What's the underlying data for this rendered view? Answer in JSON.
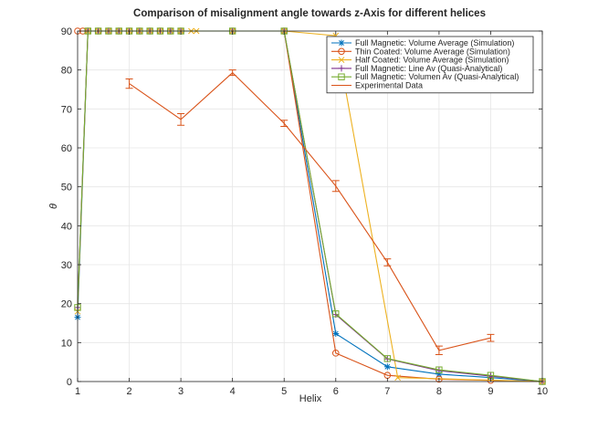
{
  "chart_data": {
    "type": "line",
    "title": "Comparison of misalignment angle towards z-Axis for different helices",
    "xlabel": "Helix",
    "ylabel": "θ",
    "xlim": [
      1,
      10
    ],
    "ylim": [
      0,
      90
    ],
    "xticks": [
      "1",
      "2",
      "3",
      "4",
      "5",
      "6",
      "7",
      "8",
      "9",
      "10"
    ],
    "yticks": [
      "0",
      "10",
      "20",
      "30",
      "40",
      "50",
      "60",
      "70",
      "80",
      "90"
    ],
    "grid": true,
    "legend_position": "top-right",
    "series": [
      {
        "name": "Full Magnetic: Volume Average (Simulation)",
        "color": "#0072bd",
        "marker": "asterisk",
        "x": [
          1,
          1.2,
          1.4,
          1.6,
          1.8,
          2,
          2.2,
          2.4,
          2.6,
          2.8,
          3,
          4,
          5,
          6,
          7,
          8,
          9,
          10
        ],
        "y": [
          16.5,
          90,
          90,
          90,
          90,
          90,
          90,
          90,
          90,
          90,
          90,
          90,
          90,
          12.3,
          3.8,
          1.9,
          1.0,
          0
        ]
      },
      {
        "name": "Thin Coated: Volume Average (Simulation)",
        "color": "#d95319",
        "marker": "circle",
        "x": [
          1,
          1.1,
          1.2,
          1.4,
          1.6,
          1.8,
          2,
          2.2,
          2.4,
          2.6,
          2.8,
          3,
          4,
          5,
          6,
          7,
          8,
          9,
          10
        ],
        "y": [
          90,
          90,
          90,
          90,
          90,
          90,
          90,
          90,
          90,
          90,
          90,
          90,
          90,
          90,
          7.3,
          1.6,
          0.6,
          0.3,
          0
        ]
      },
      {
        "name": "Half Coated: Volume Average (Simulation)",
        "color": "#edb120",
        "marker": "cross",
        "x": [
          1,
          1.2,
          1.4,
          1.6,
          1.8,
          2,
          2.2,
          2.4,
          2.6,
          2.8,
          3,
          3.2,
          3.3,
          4,
          5,
          6,
          7.2,
          10
        ],
        "y": [
          18,
          90,
          90,
          90,
          90,
          90,
          90,
          90,
          90,
          90,
          90,
          90,
          90,
          90,
          90,
          88.8,
          1.0,
          0
        ]
      },
      {
        "name": "Full Magnetic: Line Av (Quasi-Analytical)",
        "color": "#7e2f8e",
        "marker": "plus",
        "x": [
          1,
          1.2,
          1.4,
          1.6,
          1.8,
          2,
          2.2,
          2.4,
          2.6,
          2.8,
          3,
          4,
          5,
          6,
          7,
          8,
          9,
          10
        ],
        "y": [
          19,
          90,
          90,
          90,
          90,
          90,
          90,
          90,
          90,
          90,
          90,
          90,
          90,
          17.2,
          5.8,
          2.8,
          1.4,
          0
        ]
      },
      {
        "name": "Full Magnetic: Volumen Av (Quasi-Analytical)",
        "color": "#77ac30",
        "marker": "square",
        "x": [
          1,
          1.2,
          1.4,
          1.6,
          1.8,
          2,
          2.2,
          2.4,
          2.6,
          2.8,
          3,
          4,
          5,
          6,
          7,
          8,
          9,
          10
        ],
        "y": [
          19,
          90,
          90,
          90,
          90,
          90,
          90,
          90,
          90,
          90,
          90,
          90,
          90,
          17.4,
          5.9,
          3.0,
          1.6,
          0
        ]
      },
      {
        "name": "Experimental Data",
        "color": "#d95319",
        "marker": "errorbar",
        "x": [
          2,
          3,
          4,
          5,
          6,
          7,
          8,
          9
        ],
        "y": [
          76.5,
          67.3,
          79.3,
          66.3,
          50.2,
          30.6,
          8.0,
          11.2
        ],
        "err": [
          1.2,
          1.5,
          0.7,
          0.8,
          1.4,
          0.9,
          1.1,
          0.9
        ]
      }
    ]
  }
}
